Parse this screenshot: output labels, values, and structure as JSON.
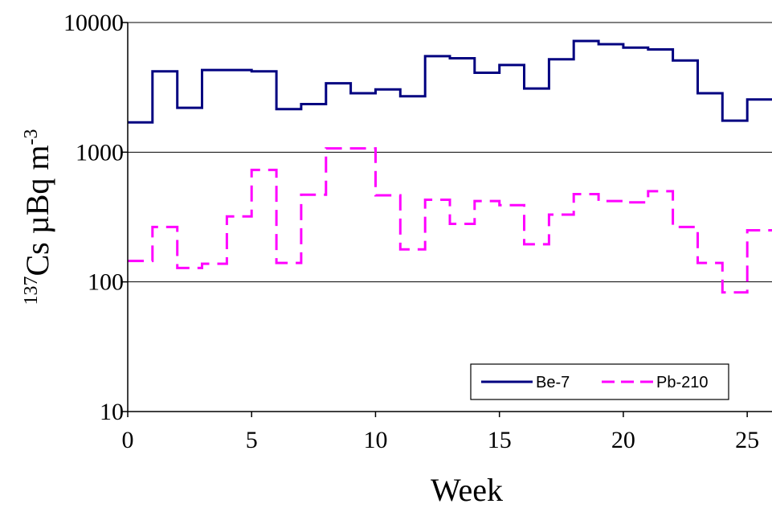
{
  "chart_data": {
    "type": "line",
    "step": true,
    "xlabel": "Week",
    "ylabel": {
      "superscript_prefix": "137",
      "main": "Cs µBq m",
      "superscript_suffix": "-3"
    },
    "xlim": [
      0,
      26
    ],
    "ylim": [
      10,
      10000
    ],
    "yscale": "log",
    "xticks": [
      0,
      5,
      10,
      15,
      20,
      25
    ],
    "yticks": [
      10,
      100,
      1000,
      10000
    ],
    "xtick_labels": [
      "0",
      "5",
      "10",
      "15",
      "20",
      "25"
    ],
    "ytick_labels": [
      "10",
      "100",
      "1000",
      "10000"
    ],
    "grid": {
      "y_major": true,
      "x": false
    },
    "legend": {
      "position": "bottom-right"
    },
    "series": [
      {
        "name": "Be-7",
        "color": "#000080",
        "style": "solid",
        "x": [
          0,
          1,
          2,
          3,
          4,
          5,
          6,
          7,
          8,
          9,
          10,
          11,
          12,
          13,
          14,
          15,
          16,
          17,
          18,
          19,
          20,
          21,
          22,
          23,
          24,
          25
        ],
        "values": [
          1700,
          4200,
          2200,
          4300,
          4300,
          4200,
          2150,
          2350,
          3400,
          2850,
          3050,
          2700,
          5500,
          5300,
          4100,
          4700,
          3100,
          5200,
          7200,
          6800,
          6400,
          6200,
          5100,
          2850,
          1750,
          2550
        ]
      },
      {
        "name": "Pb-210",
        "color": "#ff00ff",
        "style": "dashed",
        "x": [
          0,
          1,
          2,
          3,
          4,
          5,
          6,
          7,
          8,
          9,
          10,
          11,
          12,
          13,
          14,
          15,
          16,
          17,
          18,
          19,
          20,
          21,
          22,
          23,
          24,
          25
        ],
        "values": [
          145,
          265,
          128,
          138,
          320,
          730,
          140,
          470,
          1070,
          1070,
          465,
          178,
          430,
          280,
          420,
          390,
          195,
          330,
          475,
          420,
          410,
          500,
          265,
          140,
          83,
          250
        ]
      }
    ]
  }
}
